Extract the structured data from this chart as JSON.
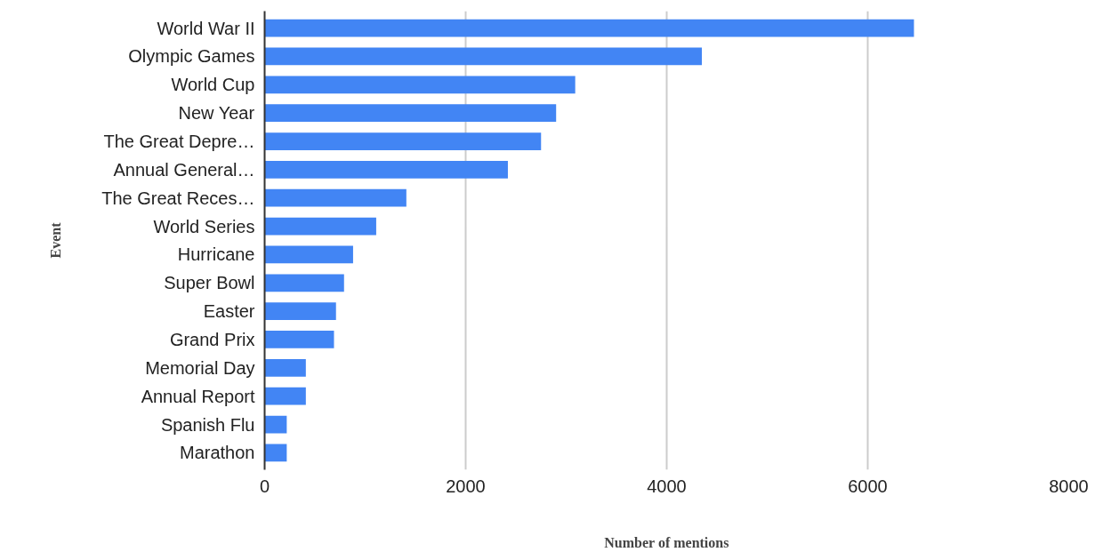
{
  "chart_data": {
    "type": "bar",
    "orientation": "horizontal",
    "xlabel": "Number of mentions",
    "ylabel": "Event",
    "categories": [
      "World War II",
      "Olympic Games",
      "World Cup",
      "New Year",
      "The Great Depre…",
      "Annual General…",
      "The Great Reces…",
      "World Series",
      "Hurricane",
      "Super Bowl",
      "Easter",
      "Grand Prix",
      "Memorial Day",
      "Annual Report",
      "Spanish Flu",
      "Marathon"
    ],
    "values": [
      6460,
      4350,
      3090,
      2900,
      2750,
      2420,
      1410,
      1110,
      880,
      790,
      710,
      690,
      410,
      410,
      220,
      220
    ],
    "color": "#4285f4",
    "xlim": [
      0,
      8000
    ],
    "xticks": [
      0,
      2000,
      4000,
      6000,
      8000
    ],
    "grid": "x"
  }
}
